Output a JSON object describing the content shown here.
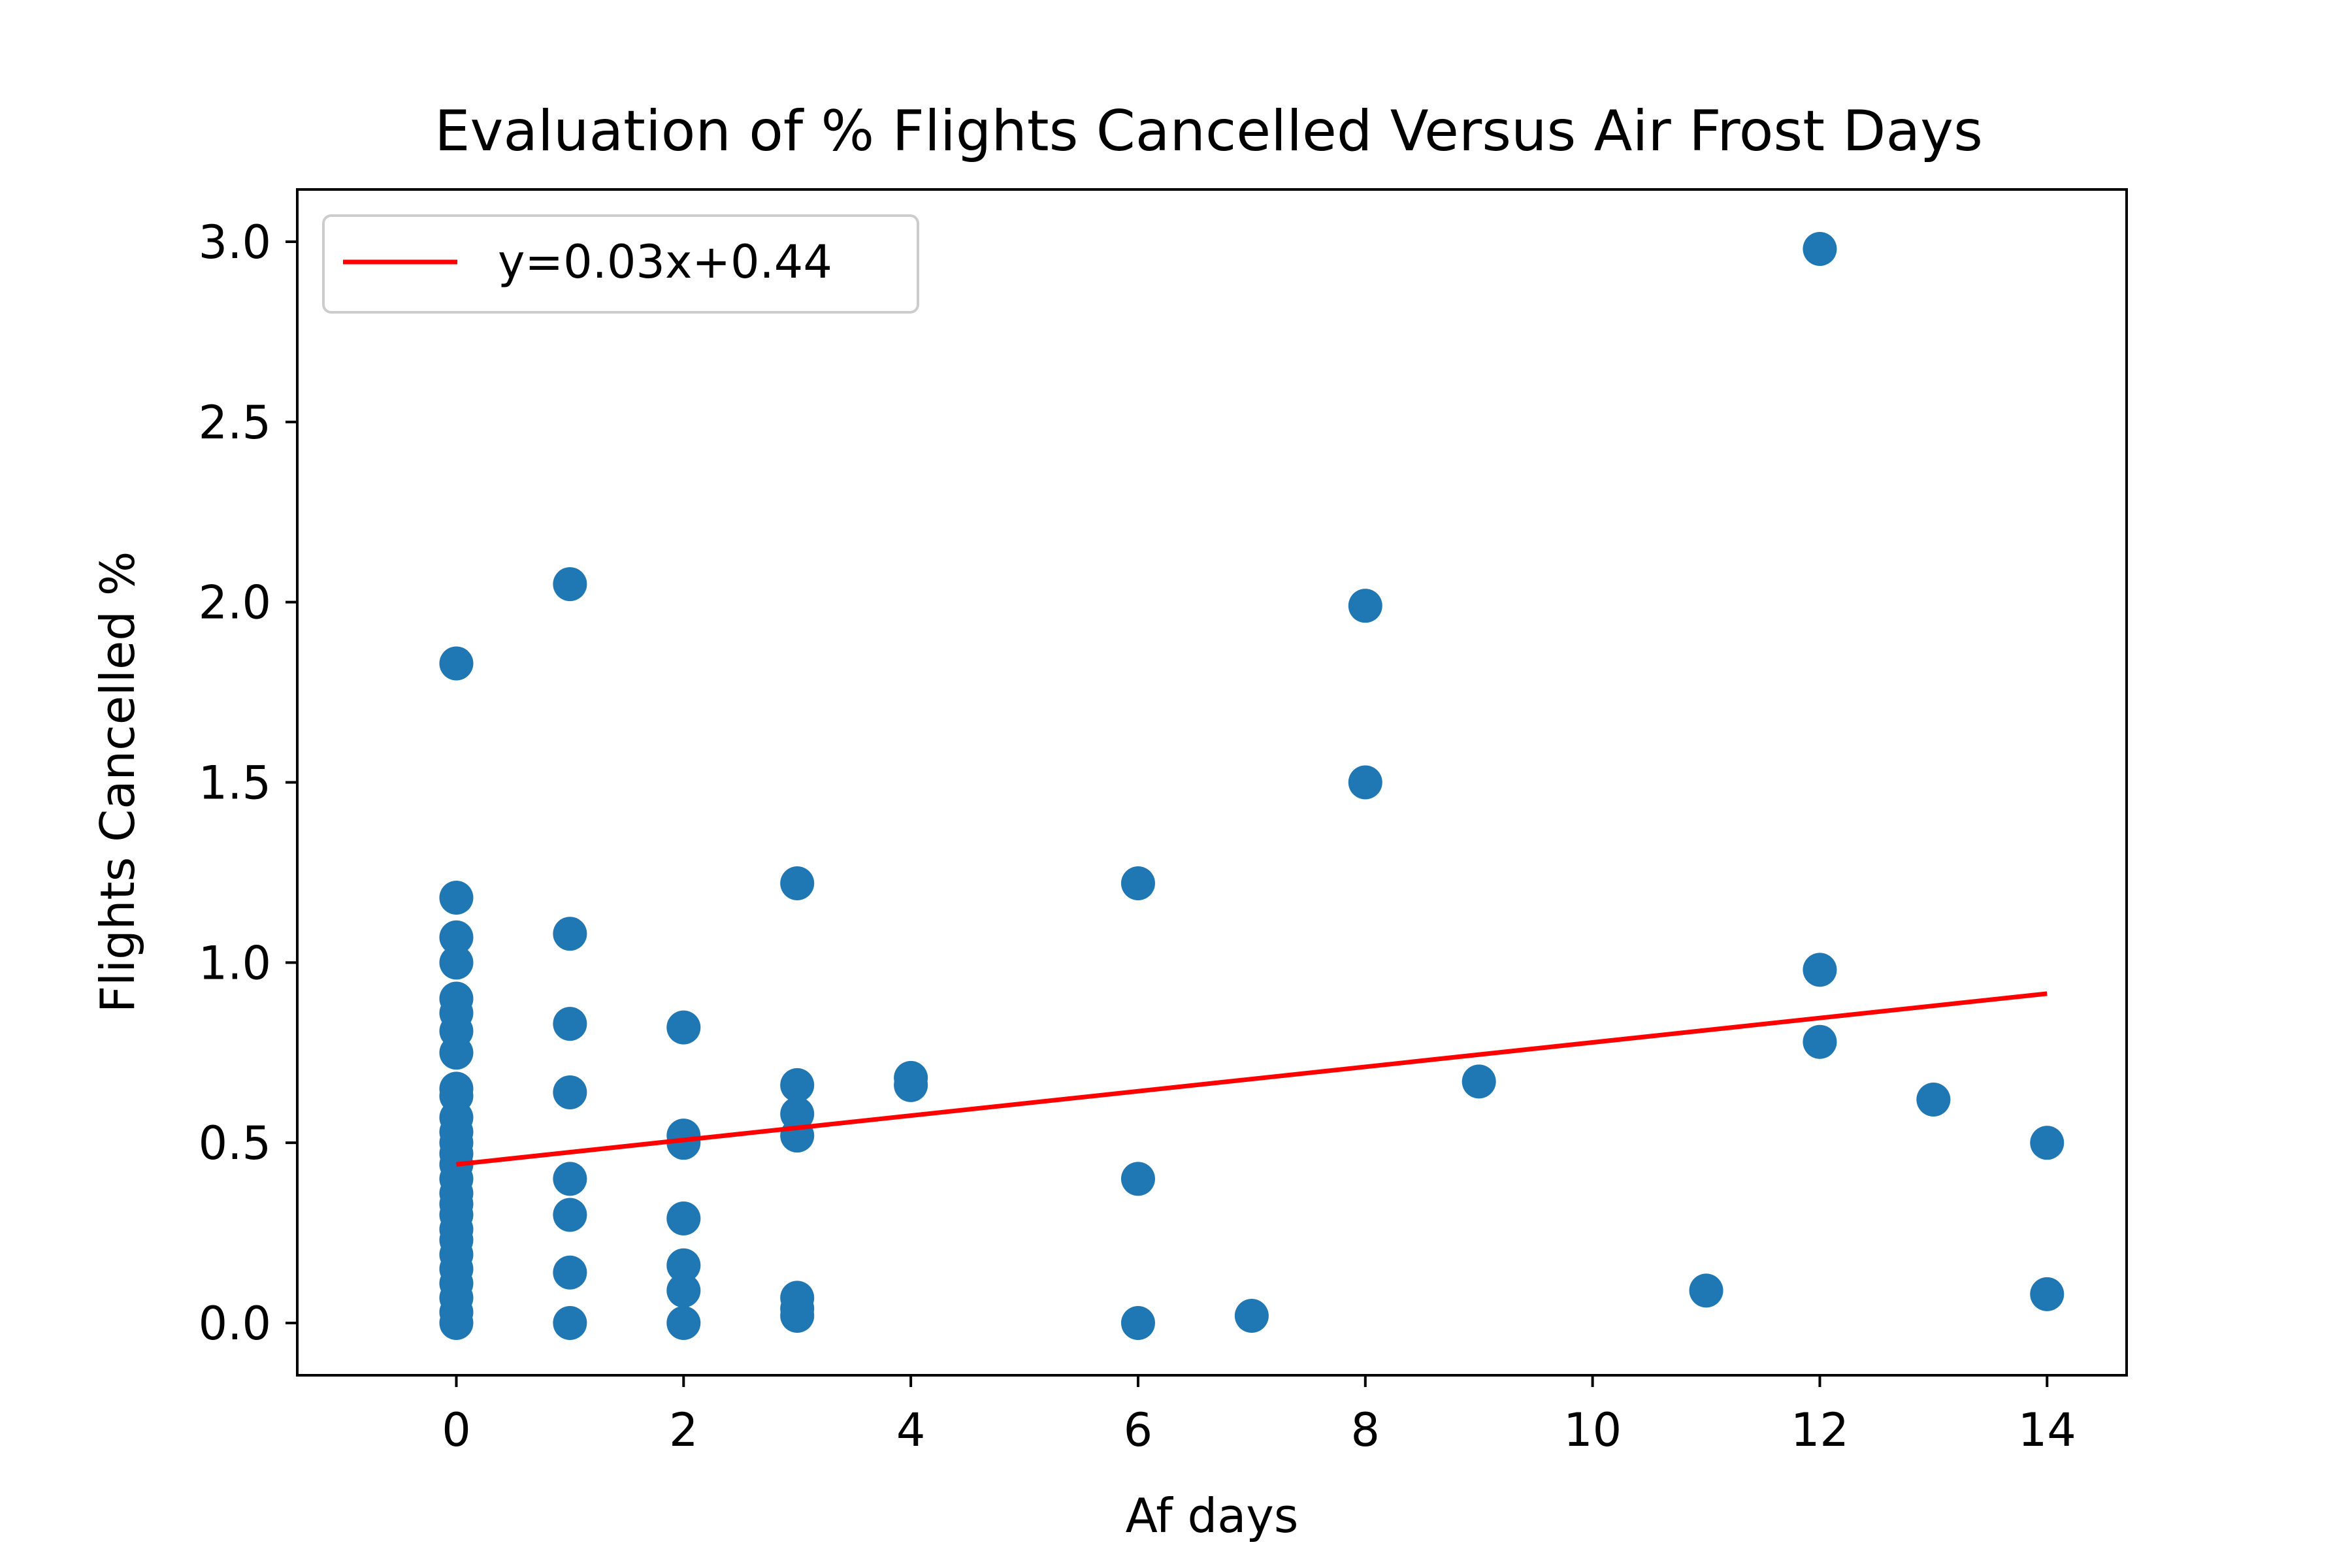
{
  "chart_data": {
    "type": "scatter",
    "title": "Evaluation of % Flights Cancelled Versus Air Frost Days",
    "xlabel": "Af days",
    "ylabel": "Flights Cancelled %",
    "xlim": [
      -1.4,
      14.7
    ],
    "ylim": [
      -0.145,
      3.145
    ],
    "xticks": [
      0,
      2,
      4,
      6,
      8,
      10,
      12,
      14
    ],
    "yticks": [
      0.0,
      0.5,
      1.0,
      1.5,
      2.0,
      2.5,
      3.0
    ],
    "xtick_labels": [
      "0",
      "2",
      "4",
      "6",
      "8",
      "10",
      "12",
      "14"
    ],
    "ytick_labels": [
      "0.0",
      "0.5",
      "1.0",
      "1.5",
      "2.0",
      "2.5",
      "3.0"
    ],
    "grid": false,
    "legend": {
      "location": "upper-left",
      "entries": [
        "y=0.03x+0.44"
      ]
    },
    "series": [
      {
        "kind": "scatter",
        "color": "#1f77b4",
        "points": [
          [
            0,
            1.83
          ],
          [
            0,
            1.18
          ],
          [
            0,
            1.07
          ],
          [
            0,
            1.0
          ],
          [
            0,
            0.9
          ],
          [
            0,
            0.86
          ],
          [
            0,
            0.81
          ],
          [
            0,
            0.75
          ],
          [
            0,
            0.65
          ],
          [
            0,
            0.63
          ],
          [
            0,
            0.57
          ],
          [
            0,
            0.53
          ],
          [
            0,
            0.5
          ],
          [
            0,
            0.47
          ],
          [
            0,
            0.44
          ],
          [
            0,
            0.4
          ],
          [
            0,
            0.36
          ],
          [
            0,
            0.33
          ],
          [
            0,
            0.3
          ],
          [
            0,
            0.26
          ],
          [
            0,
            0.23
          ],
          [
            0,
            0.19
          ],
          [
            0,
            0.15
          ],
          [
            0,
            0.11
          ],
          [
            0,
            0.07
          ],
          [
            0,
            0.03
          ],
          [
            0,
            0.0
          ],
          [
            1,
            2.05
          ],
          [
            1,
            1.08
          ],
          [
            1,
            0.83
          ],
          [
            1,
            0.64
          ],
          [
            1,
            0.4
          ],
          [
            1,
            0.3
          ],
          [
            1,
            0.14
          ],
          [
            1,
            0.0
          ],
          [
            2,
            0.82
          ],
          [
            2,
            0.52
          ],
          [
            2,
            0.5
          ],
          [
            2,
            0.29
          ],
          [
            2,
            0.16
          ],
          [
            2,
            0.09
          ],
          [
            2,
            0.0
          ],
          [
            3,
            1.22
          ],
          [
            3,
            0.66
          ],
          [
            3,
            0.58
          ],
          [
            3,
            0.52
          ],
          [
            3,
            0.07
          ],
          [
            3,
            0.04
          ],
          [
            3,
            0.02
          ],
          [
            4,
            0.68
          ],
          [
            4,
            0.66
          ],
          [
            6,
            1.22
          ],
          [
            6,
            0.4
          ],
          [
            6,
            0.0
          ],
          [
            7,
            0.02
          ],
          [
            8,
            1.99
          ],
          [
            8,
            1.5
          ],
          [
            9,
            0.67
          ],
          [
            11,
            0.09
          ],
          [
            12,
            2.98
          ],
          [
            12,
            0.98
          ],
          [
            12,
            0.78
          ],
          [
            13,
            0.62
          ],
          [
            14,
            0.5
          ],
          [
            14,
            0.08
          ]
        ]
      },
      {
        "kind": "line",
        "name": "y=0.03x+0.44",
        "color": "#ff0000",
        "slope": 0.03385,
        "intercept": 0.44,
        "x_range": [
          0,
          14
        ]
      }
    ]
  }
}
